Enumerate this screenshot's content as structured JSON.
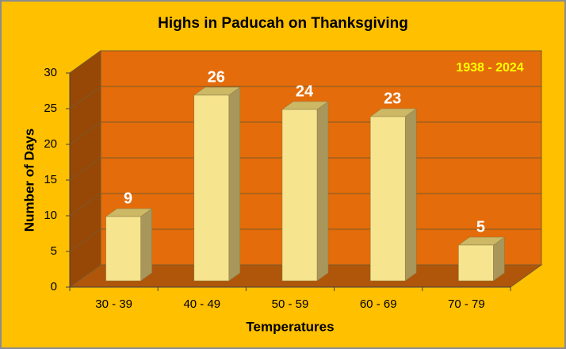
{
  "chart_data": {
    "type": "bar",
    "title": "Highs in Paducah on Thanksgiving",
    "annotation": "1938 - 2024",
    "x_label": "Temperatures",
    "y_label": "Number of Days",
    "categories": [
      "30 - 39",
      "40 - 49",
      "50 - 59",
      "60 - 69",
      "70 - 79"
    ],
    "values": [
      9,
      26,
      24,
      23,
      5
    ],
    "color": "#F7E48F",
    "ylim": [
      0,
      30
    ],
    "yticks": [
      0,
      5,
      10,
      15,
      20,
      25,
      30
    ],
    "grid": true
  }
}
